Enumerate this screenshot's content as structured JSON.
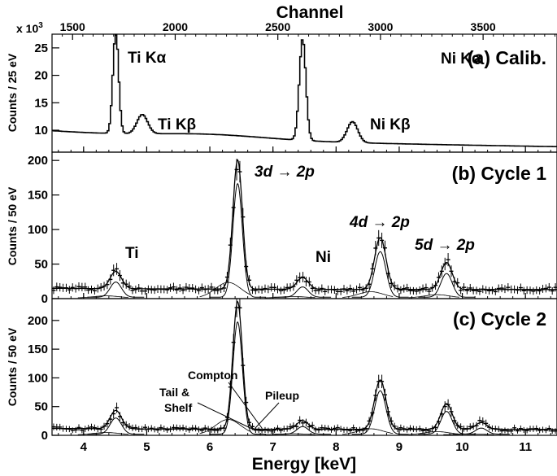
{
  "chart_data": {
    "type": "line",
    "top_axis": {
      "label": "Channel",
      "ticks": [
        1500,
        2000,
        2500,
        3000,
        3500
      ],
      "range": [
        1400,
        3860
      ]
    },
    "x_axis": {
      "label": "Energy [keV]",
      "range": [
        3.5,
        11.5
      ],
      "ticks": [
        4,
        5,
        6,
        7,
        8,
        9,
        10,
        11
      ]
    },
    "panels": [
      {
        "id": "a",
        "title": "(a) Calib.",
        "ylabel": "Counts / 25 eV",
        "ylabel_multiplier": "x 10",
        "ylabel_multiplier_exp": "3",
        "ylim": [
          6.0,
          27.5
        ],
        "yticks": [
          10,
          15,
          20,
          25
        ],
        "baseline": 7.5,
        "peaks": [
          {
            "label": "Ti Kα",
            "center_keV": 4.51,
            "height": 26.0
          },
          {
            "label": "Ti Kβ",
            "center_keV": 4.93,
            "height": 11.0
          },
          {
            "label": "Ni Kα",
            "center_keV": 7.47,
            "height": 26.0
          },
          {
            "label": "Ni Kβ",
            "center_keV": 8.26,
            "height": 11.3
          }
        ]
      },
      {
        "id": "b",
        "title": "(b) Cycle 1",
        "ylabel": "Counts / 50 eV",
        "ylim": [
          0,
          212
        ],
        "yticks": [
          0,
          50,
          100,
          150,
          200
        ],
        "background": 13,
        "peaks": [
          {
            "label": "Ti",
            "center_keV": 4.51,
            "height": 38
          },
          {
            "label": "3d → 2p",
            "center_keV": 6.44,
            "height": 200
          },
          {
            "label": "Ni",
            "center_keV": 7.47,
            "height": 30
          },
          {
            "label": "4d → 2p",
            "center_keV": 8.7,
            "height": 88
          },
          {
            "label": "5d → 2p",
            "center_keV": 9.75,
            "height": 52
          }
        ]
      },
      {
        "id": "c",
        "title": "(c) Cycle 2",
        "ylabel": "Counts / 50 eV",
        "ylim": [
          0,
          238
        ],
        "yticks": [
          0,
          50,
          100,
          150,
          200
        ],
        "background": 10,
        "peaks": [
          {
            "center_keV": 4.51,
            "height": 42
          },
          {
            "center_keV": 6.44,
            "height": 232
          },
          {
            "center_keV": 7.47,
            "height": 25
          },
          {
            "center_keV": 8.7,
            "height": 96
          },
          {
            "center_keV": 9.75,
            "height": 55
          },
          {
            "center_keV": 10.3,
            "height": 22
          }
        ],
        "annotations": [
          "Compton",
          "Tail &",
          "Shelf",
          "Pileup"
        ]
      }
    ]
  }
}
